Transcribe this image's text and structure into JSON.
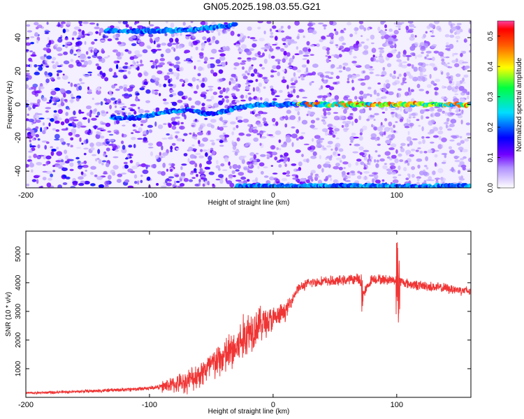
{
  "title": "GN05.2025.198.03.55.G21",
  "chart_data": [
    {
      "type": "heatmap",
      "xlabel": "Height of straight line (km)",
      "ylabel": "Frequency (Hz)",
      "xlim": [
        -200,
        160
      ],
      "ylim": [
        -50,
        50
      ],
      "xticks": [
        -200,
        -100,
        0,
        100
      ],
      "yticks": [
        -40,
        -20,
        0,
        20,
        40
      ],
      "colorbar": {
        "label": "Normalized spectral amplitude",
        "range": [
          0,
          0.55
        ],
        "ticks": [
          0.0,
          0.1,
          0.2,
          0.3,
          0.4,
          0.5
        ]
      },
      "ridges": [
        {
          "x": [
            -130,
            -110,
            -90,
            -70,
            -50,
            -30,
            -10,
            10,
            50,
            100,
            160
          ],
          "y": [
            -8,
            -8,
            -5,
            -3,
            -6,
            -2,
            0,
            0,
            0,
            0,
            0
          ]
        },
        {
          "x": [
            -135,
            -100,
            -60,
            -30
          ],
          "y": [
            44,
            44,
            45,
            48
          ]
        },
        {
          "x": [
            -30,
            0,
            60,
            160
          ],
          "y": [
            -49,
            -49,
            -49,
            -49
          ]
        }
      ]
    },
    {
      "type": "line",
      "xlabel": "Height of straight line (km)",
      "ylabel": "SNR (10 * v/v)",
      "xlim": [
        -200,
        160
      ],
      "ylim": [
        0,
        5800
      ],
      "xticks": [
        -200,
        -100,
        0,
        100
      ],
      "yticks": [
        1000,
        2000,
        3000,
        4000,
        5000
      ],
      "color": "#f03434",
      "series": [
        {
          "x": [
            -200,
            -180,
            -160,
            -140,
            -120,
            -100,
            -90,
            -80,
            -70,
            -60,
            -50,
            -40,
            -30,
            -20,
            -10,
            0,
            10,
            20,
            30,
            40,
            50,
            60,
            70,
            72,
            80,
            90,
            100,
            110,
            120,
            130,
            140,
            150,
            160
          ],
          "y": [
            150,
            170,
            200,
            230,
            270,
            320,
            380,
            450,
            550,
            800,
            1100,
            1400,
            1700,
            2300,
            2600,
            2700,
            3000,
            3800,
            4000,
            4050,
            4050,
            4100,
            4150,
            3500,
            4150,
            4100,
            4100,
            3950,
            3900,
            3850,
            3800,
            3750,
            3700
          ]
        }
      ]
    }
  ]
}
